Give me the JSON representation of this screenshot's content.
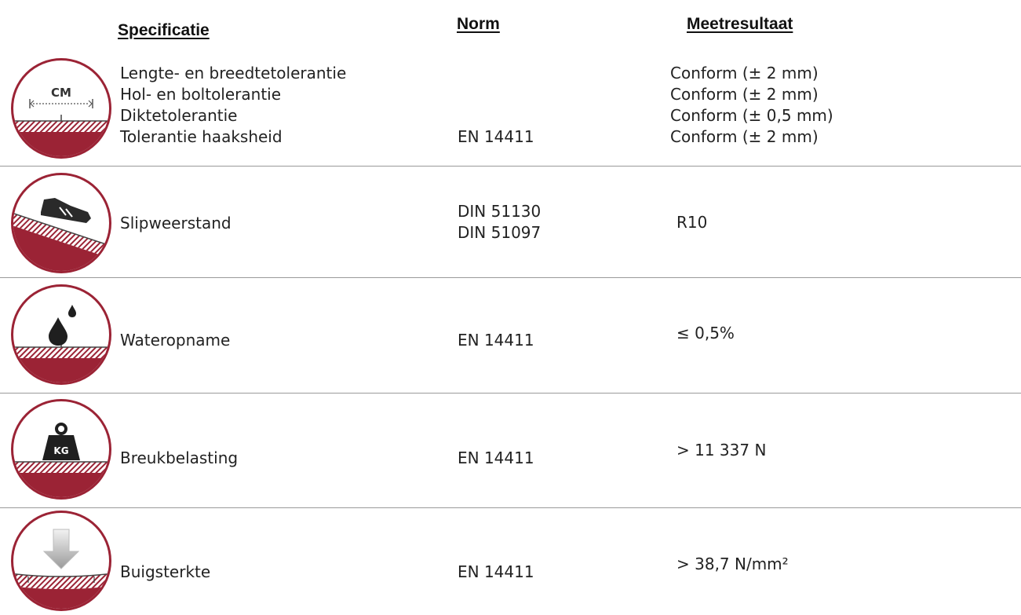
{
  "header": {
    "specificatie": "Specificatie",
    "norm": "Norm",
    "meetresultaat": "Meetresultaat"
  },
  "colors": {
    "accent": "#9b2335",
    "divider": "#9a9a9a"
  },
  "rows": [
    {
      "icon": "ruler-tolerance-icon",
      "icon_label": "CM",
      "specs": [
        "Lengte- en breedtetolerantie",
        "Hol- en boltolerantie",
        "Diktetolerantie",
        "Tolerantie haaksheid"
      ],
      "norms": [
        "EN 14411"
      ],
      "results": [
        "Conform (± 2 mm)",
        "Conform (± 2 mm)",
        "Conform (± 0,5 mm)",
        "Conform (± 2 mm)"
      ]
    },
    {
      "icon": "shoe-slope-icon",
      "specs": [
        "Slipweerstand"
      ],
      "norms": [
        "DIN 51130",
        "DIN 51097"
      ],
      "results": [
        "R10"
      ]
    },
    {
      "icon": "water-drop-icon",
      "specs": [
        "Wateropname"
      ],
      "norms": [
        "EN 14411"
      ],
      "results": [
        "≤ 0,5%"
      ]
    },
    {
      "icon": "weight-icon",
      "icon_label": "KG",
      "specs": [
        "Breukbelasting"
      ],
      "norms": [
        "EN 14411"
      ],
      "results": [
        "> 11 337 N"
      ]
    },
    {
      "icon": "bending-arrow-icon",
      "specs": [
        "Buigsterkte"
      ],
      "norms": [
        "EN 14411"
      ],
      "results": [
        "> 38,7 N/mm²"
      ]
    }
  ]
}
